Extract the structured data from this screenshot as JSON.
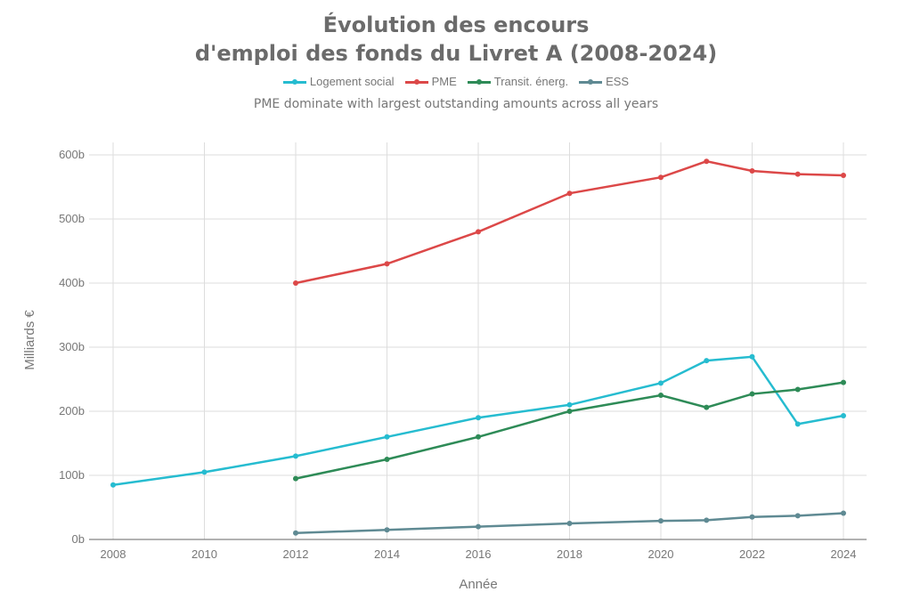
{
  "chart_data": {
    "type": "line",
    "title_line1": "Évolution des encours",
    "title_line2": "d'emploi des fonds du Livret A (2008-2024)",
    "subtitle": "PME dominate with largest outstanding amounts across all years",
    "xlabel": "Année",
    "ylabel": "Milliards €",
    "xlim": [
      2008,
      2024
    ],
    "ylim": [
      0,
      600
    ],
    "x_ticks": [
      "2008",
      "2010",
      "2012",
      "2014",
      "2016",
      "2018",
      "2020",
      "2022",
      "2024"
    ],
    "y_ticks": [
      "0b",
      "100b",
      "200b",
      "300b",
      "400b",
      "500b",
      "600b"
    ],
    "grid": true,
    "legend_position": "top-center",
    "series": [
      {
        "name": "Logement social",
        "color": "#26bcd0",
        "x": [
          2008,
          2010,
          2012,
          2014,
          2016,
          2018,
          2020,
          2021,
          2022,
          2023,
          2024
        ],
        "values": [
          85,
          105,
          130,
          160,
          190,
          210,
          244,
          279,
          285,
          180,
          193
        ]
      },
      {
        "name": "PME",
        "color": "#dc4848",
        "x": [
          2012,
          2014,
          2016,
          2018,
          2020,
          2021,
          2022,
          2023,
          2024
        ],
        "values": [
          400,
          430,
          480,
          540,
          565,
          590,
          575,
          570,
          568
        ]
      },
      {
        "name": "Transit. énerg.",
        "color": "#2e8b57",
        "x": [
          2012,
          2014,
          2016,
          2018,
          2020,
          2021,
          2022,
          2023,
          2024
        ],
        "values": [
          95,
          125,
          160,
          200,
          225,
          206,
          227,
          234,
          245
        ]
      },
      {
        "name": "ESS",
        "color": "#5f8a93",
        "x": [
          2012,
          2014,
          2016,
          2018,
          2020,
          2021,
          2022,
          2023,
          2024
        ],
        "values": [
          10,
          15,
          20,
          25,
          29,
          30,
          35,
          37,
          41
        ]
      }
    ]
  }
}
